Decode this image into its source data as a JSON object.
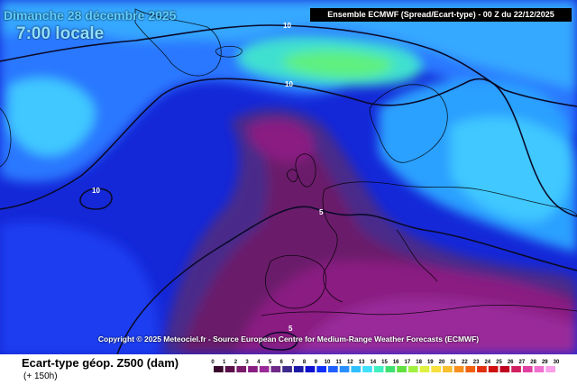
{
  "title": {
    "date": "Dimanche 28 décembre 2025",
    "time": "7:00 locale"
  },
  "header": {
    "text": "Ensemble ECMWF  (Spread/Ecart-type) - 00 Z du 22/12/2025"
  },
  "copyright": "Copyright © 2025 Meteociel.fr - Source European Centre for Medium-Range Weather Forecasts (ECMWF)",
  "parameter": {
    "label": "Ecart-type géop. Z500 (dam)",
    "lead_time": "(+ 150h)"
  },
  "contour_labels": [
    "10",
    "10",
    "10",
    "5",
    "5"
  ],
  "colorbar": {
    "ticks": [
      "0",
      "1",
      "2",
      "3",
      "4",
      "5",
      "6",
      "7",
      "8",
      "9",
      "10",
      "11",
      "12",
      "13",
      "14",
      "15",
      "16",
      "17",
      "18",
      "19",
      "20",
      "21",
      "22",
      "23",
      "24",
      "25",
      "26",
      "27",
      "28",
      "29",
      "30"
    ],
    "colors": [
      "#3a0a2e",
      "#5a0f4a",
      "#7a1a6a",
      "#8a1f82",
      "#9a2a9a",
      "#6f2a88",
      "#3d2a8a",
      "#1e1aa8",
      "#1010d0",
      "#1030ff",
      "#2060ff",
      "#2a90ff",
      "#30c0ff",
      "#40e0ff",
      "#40f0c0",
      "#40e070",
      "#60e040",
      "#a0f040",
      "#e0f040",
      "#f8e040",
      "#f8c030",
      "#f89020",
      "#f06010",
      "#e03010",
      "#d01010",
      "#c00020",
      "#d02060",
      "#e040a0",
      "#f070d0",
      "#f8a0e8"
    ]
  },
  "colors": {
    "title_accent": "#5fd0ff",
    "header_bg": "#000000",
    "contour_line": "#0a0a2a"
  }
}
